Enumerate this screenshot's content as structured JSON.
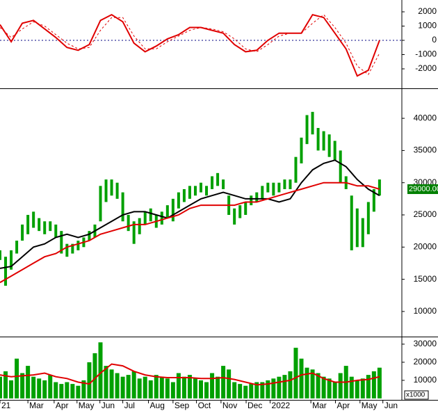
{
  "chart_data": [
    {
      "type": "line",
      "xlim": [
        0,
        72
      ],
      "ylim": [
        -3366,
        2829
      ],
      "yticks": [
        -2000,
        -1000,
        0,
        1000,
        2000
      ],
      "hline": 0,
      "series": [
        {
          "color": "#e00000",
          "dash": false,
          "x": [
            0,
            2,
            4,
            6,
            8,
            10,
            12,
            14,
            16,
            18,
            20,
            22,
            24,
            26,
            28,
            30,
            32,
            34,
            36,
            38,
            40,
            42,
            44,
            46,
            48,
            50,
            52,
            54,
            56,
            58,
            60,
            62,
            64,
            66,
            68
          ],
          "values": [
            1100,
            -100,
            1200,
            1400,
            800,
            200,
            -500,
            -700,
            -300,
            1400,
            1800,
            1300,
            -200,
            -800,
            -400,
            100,
            400,
            900,
            900,
            700,
            500,
            -300,
            -800,
            -700,
            0,
            500,
            500,
            500,
            1800,
            1600,
            500,
            -600,
            -2500,
            -2100,
            0
          ]
        },
        {
          "color": "#e00000",
          "dash": true,
          "x": [
            0,
            2,
            4,
            6,
            8,
            10,
            12,
            14,
            16,
            18,
            20,
            22,
            24,
            26,
            28,
            30,
            32,
            34,
            36,
            38,
            40,
            42,
            44,
            46,
            48,
            50,
            52,
            54,
            56,
            58,
            60,
            62,
            64,
            66,
            68
          ],
          "values": [
            900,
            200,
            800,
            1300,
            1000,
            400,
            -200,
            -600,
            -500,
            700,
            1600,
            1600,
            300,
            -600,
            -600,
            -100,
            300,
            700,
            900,
            800,
            600,
            100,
            -600,
            -800,
            -300,
            300,
            500,
            500,
            1200,
            1800,
            900,
            -200,
            -1800,
            -2400,
            -900
          ]
        }
      ]
    },
    {
      "type": "candlestick",
      "xlim": [
        0,
        72
      ],
      "ylim": [
        6100,
        44550
      ],
      "yticks": [
        10000,
        15000,
        20000,
        25000,
        30000,
        35000,
        40000
      ],
      "color": "#00a000",
      "x": [
        0,
        1,
        2,
        3,
        4,
        5,
        6,
        7,
        8,
        9,
        10,
        11,
        12,
        13,
        14,
        15,
        16,
        17,
        18,
        19,
        20,
        21,
        22,
        23,
        24,
        25,
        26,
        27,
        28,
        29,
        30,
        31,
        32,
        33,
        34,
        35,
        36,
        37,
        38,
        39,
        40,
        41,
        42,
        43,
        44,
        45,
        46,
        47,
        48,
        49,
        50,
        51,
        52,
        53,
        54,
        55,
        56,
        57,
        58,
        59,
        60,
        61,
        62,
        63,
        64,
        65,
        66,
        67,
        68
      ],
      "low": [
        18000,
        14000,
        16500,
        19000,
        21000,
        22000,
        23000,
        22500,
        22000,
        22500,
        21500,
        19000,
        18500,
        19000,
        19500,
        20000,
        21000,
        21500,
        24000,
        27000,
        28000,
        27500,
        24000,
        22500,
        20500,
        22000,
        23500,
        24000,
        23000,
        23500,
        24500,
        24000,
        26000,
        27000,
        27500,
        28000,
        28500,
        28000,
        29000,
        29500,
        29000,
        25000,
        23500,
        24500,
        25000,
        26500,
        27000,
        27500,
        28500,
        28000,
        28500,
        29000,
        29000,
        30000,
        33000,
        36000,
        37500,
        35000,
        35000,
        34000,
        33500,
        30000,
        29000,
        19500,
        20000,
        20000,
        22000,
        25500,
        28000
      ],
      "high": [
        19500,
        18500,
        19500,
        21000,
        23500,
        25000,
        25500,
        24500,
        24000,
        24000,
        23500,
        22500,
        20500,
        20500,
        21000,
        21500,
        22500,
        23500,
        29500,
        30500,
        30500,
        30000,
        28500,
        25000,
        24000,
        24500,
        25500,
        26000,
        25000,
        25500,
        26500,
        27500,
        28500,
        29000,
        29500,
        29500,
        30000,
        29500,
        31000,
        31500,
        30500,
        28000,
        26000,
        26500,
        27000,
        28000,
        28500,
        29500,
        30000,
        30000,
        30000,
        30500,
        30500,
        34000,
        37000,
        40500,
        41000,
        38500,
        38000,
        37500,
        36500,
        35000,
        31000,
        28000,
        26000,
        24500,
        27000,
        29000,
        30500
      ],
      "last_value": {
        "value": 29000,
        "label": "29000.00"
      },
      "series": [
        {
          "color": "#000000",
          "x": [
            0,
            2,
            4,
            6,
            8,
            10,
            12,
            14,
            16,
            18,
            20,
            22,
            24,
            26,
            28,
            30,
            32,
            34,
            36,
            38,
            40,
            42,
            44,
            46,
            48,
            50,
            52,
            54,
            56,
            58,
            60,
            62,
            64,
            66,
            68
          ],
          "values": [
            16700,
            17000,
            18500,
            20000,
            20500,
            21500,
            22000,
            21500,
            22000,
            23000,
            24000,
            25000,
            25500,
            25500,
            25000,
            24500,
            25500,
            26500,
            27500,
            28000,
            28500,
            28000,
            27500,
            27500,
            27500,
            27000,
            27500,
            30000,
            32000,
            33000,
            33500,
            32500,
            30500,
            29000,
            28000
          ]
        },
        {
          "color": "#e00000",
          "x": [
            0,
            2,
            4,
            6,
            8,
            10,
            12,
            14,
            16,
            18,
            20,
            22,
            24,
            26,
            28,
            30,
            32,
            34,
            36,
            38,
            40,
            42,
            44,
            46,
            48,
            50,
            52,
            54,
            56,
            58,
            60,
            62,
            64,
            66,
            68
          ],
          "values": [
            14500,
            15500,
            16500,
            17500,
            18500,
            19000,
            20000,
            20500,
            21000,
            22000,
            22500,
            23000,
            23500,
            23500,
            24000,
            24500,
            25000,
            26000,
            26500,
            26500,
            26500,
            26500,
            27000,
            27000,
            27500,
            28000,
            28500,
            29000,
            29500,
            30000,
            30000,
            30000,
            29500,
            29500,
            29000
          ]
        }
      ]
    },
    {
      "type": "bar",
      "xlim": [
        0,
        72
      ],
      "ylim": [
        -800,
        33800
      ],
      "yticks": [
        10000,
        20000,
        30000
      ],
      "color": "#00a000",
      "unit_label": "x1000",
      "x": [
        0,
        1,
        2,
        3,
        4,
        5,
        6,
        7,
        8,
        9,
        10,
        11,
        12,
        13,
        14,
        15,
        16,
        17,
        18,
        19,
        20,
        21,
        22,
        23,
        24,
        25,
        26,
        27,
        28,
        29,
        30,
        31,
        32,
        33,
        34,
        35,
        36,
        37,
        38,
        39,
        40,
        41,
        42,
        43,
        44,
        45,
        46,
        47,
        48,
        49,
        50,
        51,
        52,
        53,
        54,
        55,
        56,
        57,
        58,
        59,
        60,
        61,
        62,
        63,
        64,
        65,
        66,
        67,
        68
      ],
      "values": [
        12000,
        15000,
        10000,
        22000,
        14000,
        18000,
        12000,
        11000,
        10000,
        13000,
        9000,
        8000,
        9000,
        8000,
        7000,
        10000,
        20000,
        25000,
        31000,
        18000,
        16000,
        14000,
        12000,
        13000,
        15000,
        11000,
        12000,
        10000,
        13000,
        12000,
        11000,
        9000,
        14000,
        12000,
        13000,
        11000,
        10000,
        9000,
        14000,
        12000,
        18000,
        16000,
        9000,
        8000,
        7000,
        8000,
        9000,
        9000,
        10000,
        11000,
        12000,
        13000,
        15000,
        28000,
        22000,
        17000,
        16000,
        14000,
        12000,
        11000,
        9000,
        14000,
        18000,
        12000,
        10000,
        11000,
        13000,
        15000,
        17000
      ],
      "series": [
        {
          "color": "#e00000",
          "x": [
            0,
            2,
            4,
            6,
            8,
            10,
            12,
            14,
            16,
            18,
            20,
            22,
            24,
            26,
            28,
            30,
            32,
            34,
            36,
            38,
            40,
            42,
            44,
            46,
            48,
            50,
            52,
            54,
            56,
            58,
            60,
            62,
            64,
            66,
            68
          ],
          "values": [
            13000,
            12000,
            12500,
            13000,
            14000,
            12000,
            11000,
            9000,
            8000,
            14000,
            19000,
            18000,
            15000,
            13000,
            12000,
            11500,
            11500,
            11500,
            11000,
            11000,
            11500,
            10500,
            9000,
            7500,
            8000,
            9000,
            10000,
            13000,
            14000,
            11000,
            9000,
            9000,
            10000,
            10500,
            12000
          ]
        }
      ],
      "xticks": [
        {
          "value": 0,
          "label": "21"
        },
        {
          "value": 5,
          "label": "Mar"
        },
        {
          "value": 9.7,
          "label": "Apr"
        },
        {
          "value": 13.8,
          "label": "May"
        },
        {
          "value": 17.9,
          "label": "Jun"
        },
        {
          "value": 22,
          "label": "Jul"
        },
        {
          "value": 26.6,
          "label": "Aug"
        },
        {
          "value": 31,
          "label": "Sep"
        },
        {
          "value": 35.2,
          "label": "Oct"
        },
        {
          "value": 39.6,
          "label": "Nov"
        },
        {
          "value": 44.1,
          "label": "Dec"
        },
        {
          "value": 48.4,
          "label": "2022"
        },
        {
          "value": 55.7,
          "label": "Mar"
        },
        {
          "value": 60.1,
          "label": "Apr"
        },
        {
          "value": 64.5,
          "label": "May"
        },
        {
          "value": 68.6,
          "label": "Jun"
        }
      ]
    }
  ]
}
